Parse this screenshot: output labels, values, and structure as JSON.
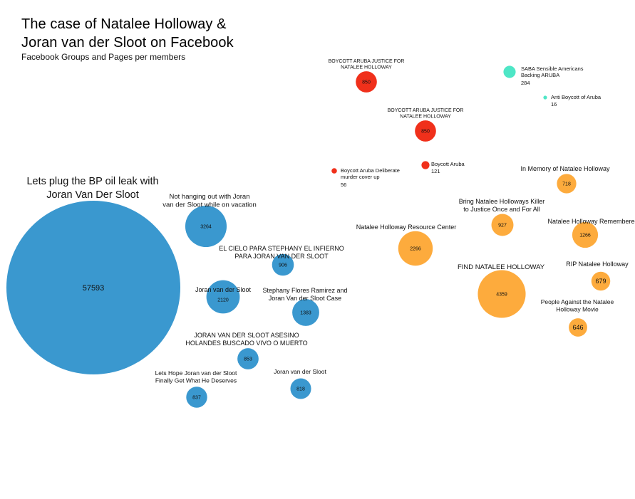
{
  "title_lines": [
    "The case of Natalee Holloway &",
    "Joran van der Sloot on Facebook"
  ],
  "subtitle": "Facebook Groups and Pages per members",
  "colors": {
    "blue": "#3a98cf",
    "orange": "#fdab3d",
    "red": "#f0301b",
    "teal": "#4ee6c6"
  },
  "chart_data": {
    "type": "bubble",
    "title": "The case of Natalee Holloway & Joran van der Sloot on Facebook",
    "subtitle": "Facebook Groups and Pages per members",
    "groups": [
      {
        "color": "blue",
        "items": [
          {
            "label": [
              "Lets plug the BP oil leak with",
              "Joran Van Der Sloot"
            ],
            "members": 57593
          },
          {
            "label": [
              "Not hanging out with Joran",
              "van der Sloot while on vacation"
            ],
            "members": 3264
          },
          {
            "label": [
              "EL CIELO PARA STEPHANY EL INFIERNO",
              "PARA JORAN VAN DER SLOOT"
            ],
            "members": 906
          },
          {
            "label": [
              "Joran van der Sloot"
            ],
            "members": 2120
          },
          {
            "label": [
              "Stephany Flores Ramirez and",
              "Joran Van der Sloot Case"
            ],
            "members": 1383
          },
          {
            "label": [
              "JORAN VAN DER SLOOT ASESINO",
              "HOLANDES BUSCADO VIVO O MUERTO"
            ],
            "members": 853
          },
          {
            "label": [
              "Lets Hope Joran van der Sloot",
              "Finally Get What He Deserves"
            ],
            "members": 837
          },
          {
            "label": [
              "Joran van der Sloot"
            ],
            "members": 818
          }
        ]
      },
      {
        "color": "orange",
        "items": [
          {
            "label": [
              "In Memory of Natalee Holloway"
            ],
            "members": 718
          },
          {
            "label": [
              "Bring Natalee Holloways Killer",
              "to Justice Once and For All"
            ],
            "members": 927
          },
          {
            "label": [
              "Natalee Holloway Remembered"
            ],
            "members": 1266
          },
          {
            "label": [
              "Natalee Holloway Resource Center"
            ],
            "members": 2266
          },
          {
            "label": [
              "FIND NATALEE HOLLOWAY"
            ],
            "members": 4359
          },
          {
            "label": [
              "RIP Natalee Holloway"
            ],
            "members": 679
          },
          {
            "label": [
              "People Against the Natalee",
              "Holloway Movie"
            ],
            "members": 646
          }
        ]
      },
      {
        "color": "red",
        "items": [
          {
            "label": [
              "BOYCOTT ARUBA JUSTICE FOR",
              "NATALEE HOLLOWAY"
            ],
            "members": 850
          },
          {
            "label": [
              "BOYCOTT ARUBA JUSTICE FOR",
              "NATALEE HOLLOWAY"
            ],
            "members": 850
          },
          {
            "label": [
              "Boycott Aruba"
            ],
            "members": 121
          },
          {
            "label": [
              "Boycott Aruba Deliberate",
              "murder cover up"
            ],
            "members": 56
          }
        ]
      },
      {
        "color": "teal",
        "items": [
          {
            "label": [
              "SABA Sensible Americans",
              "Backing ARUBA"
            ],
            "members": 284
          },
          {
            "label": [
              "Anti Boycott of Aruba"
            ],
            "members": 16
          }
        ]
      }
    ]
  }
}
